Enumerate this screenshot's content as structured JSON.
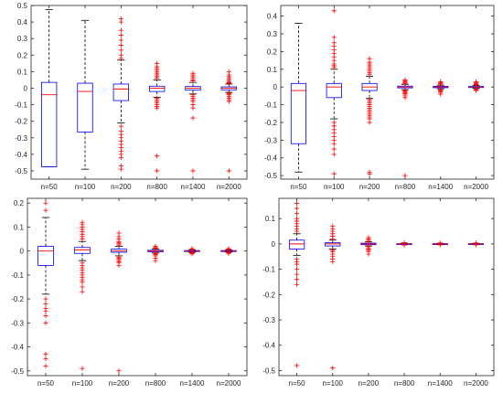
{
  "chart_data": [
    {
      "type": "box",
      "position": "top-left",
      "categories": [
        "n=50",
        "n=100",
        "n=200",
        "n=800",
        "n=1400",
        "n=2000"
      ],
      "ylim": [
        -0.55,
        0.5
      ],
      "yticks": [
        -0.5,
        -0.4,
        -0.3,
        -0.2,
        -0.1,
        0,
        0.1,
        0.2,
        0.3,
        0.4,
        0.5
      ],
      "boxes": [
        {
          "q1": -0.475,
          "median": -0.04,
          "q3": 0.035,
          "whisker_low": -0.475,
          "whisker_high": 0.475,
          "outliers": []
        },
        {
          "q1": -0.265,
          "median": -0.02,
          "q3": 0.03,
          "whisker_low": -0.49,
          "whisker_high": 0.41,
          "outliers": []
        },
        {
          "q1": -0.075,
          "median": -0.005,
          "q3": 0.025,
          "whisker_low": -0.21,
          "whisker_high": 0.17,
          "outliers": [
            0.42,
            0.4,
            0.35,
            0.32,
            0.29,
            0.26,
            0.23,
            0.2,
            0.18,
            -0.23,
            -0.26,
            -0.28,
            -0.3,
            -0.32,
            -0.34,
            -0.36,
            -0.38,
            -0.4,
            -0.42,
            -0.47,
            -0.49
          ]
        },
        {
          "q1": -0.02,
          "median": 0.0,
          "q3": 0.012,
          "whisker_low": -0.055,
          "whisker_high": 0.05,
          "outliers": [
            0.15,
            0.13,
            0.12,
            0.11,
            0.1,
            0.09,
            0.08,
            0.07,
            0.06,
            -0.06,
            -0.07,
            -0.08,
            -0.09,
            -0.1,
            -0.11,
            -0.12,
            -0.41,
            -0.5
          ]
        },
        {
          "q1": -0.012,
          "median": 0.0,
          "q3": 0.01,
          "whisker_low": -0.035,
          "whisker_high": 0.035,
          "outliers": [
            0.09,
            0.08,
            0.07,
            0.06,
            0.05,
            0.045,
            -0.04,
            -0.05,
            -0.06,
            -0.07,
            -0.08,
            -0.1,
            -0.12,
            -0.18,
            -0.5
          ]
        },
        {
          "q1": -0.01,
          "median": 0.0,
          "q3": 0.008,
          "whisker_low": -0.025,
          "whisker_high": 0.025,
          "outliers": [
            0.1,
            0.08,
            0.07,
            0.06,
            0.05,
            0.04,
            0.035,
            0.03,
            -0.03,
            -0.035,
            -0.04,
            -0.05,
            -0.06,
            -0.07,
            -0.08,
            -0.5
          ]
        }
      ]
    },
    {
      "type": "box",
      "position": "top-right",
      "categories": [
        "n=50",
        "n=100",
        "n=200",
        "n=800",
        "n=1400",
        "n=2000"
      ],
      "ylim": [
        -0.52,
        0.46
      ],
      "yticks": [
        -0.5,
        -0.4,
        -0.3,
        -0.2,
        -0.1,
        0,
        0.1,
        0.2,
        0.3,
        0.4
      ],
      "boxes": [
        {
          "q1": -0.32,
          "median": -0.02,
          "q3": 0.02,
          "whisker_low": -0.48,
          "whisker_high": 0.36,
          "outliers": []
        },
        {
          "q1": -0.06,
          "median": 0.0,
          "q3": 0.02,
          "whisker_low": -0.18,
          "whisker_high": 0.1,
          "outliers": [
            0.43,
            0.28,
            0.25,
            0.23,
            0.21,
            0.19,
            0.17,
            0.15,
            0.13,
            0.12,
            0.11,
            -0.2,
            -0.22,
            -0.24,
            -0.26,
            -0.28,
            -0.3,
            -0.32,
            -0.35,
            -0.38,
            -0.49
          ]
        },
        {
          "q1": -0.02,
          "median": 0.0,
          "q3": 0.02,
          "whisker_low": -0.065,
          "whisker_high": 0.06,
          "outliers": [
            0.16,
            0.14,
            0.13,
            0.12,
            0.11,
            0.1,
            0.09,
            0.08,
            0.07,
            -0.07,
            -0.08,
            -0.09,
            -0.1,
            -0.11,
            -0.12,
            -0.13,
            -0.14,
            -0.15,
            -0.16,
            -0.17,
            -0.18,
            -0.2,
            -0.48,
            -0.49
          ]
        },
        {
          "q1": -0.005,
          "median": 0.0,
          "q3": 0.005,
          "whisker_low": -0.015,
          "whisker_high": 0.015,
          "outliers": [
            0.04,
            0.035,
            0.03,
            0.025,
            0.02,
            -0.02,
            -0.025,
            -0.03,
            -0.035,
            -0.04,
            -0.05,
            -0.06,
            -0.5
          ]
        },
        {
          "q1": -0.004,
          "median": 0.0,
          "q3": 0.004,
          "whisker_low": -0.01,
          "whisker_high": 0.01,
          "outliers": [
            0.03,
            0.025,
            0.02,
            0.015,
            -0.015,
            -0.02,
            -0.025,
            -0.03,
            -0.04
          ]
        },
        {
          "q1": -0.003,
          "median": 0.0,
          "q3": 0.003,
          "whisker_low": -0.008,
          "whisker_high": 0.008,
          "outliers": [
            0.03,
            0.025,
            0.02,
            0.015,
            0.012,
            -0.012,
            -0.015,
            -0.02
          ]
        }
      ]
    },
    {
      "type": "box",
      "position": "bottom-left",
      "categories": [
        "n=50",
        "n=100",
        "n=200",
        "n=800",
        "n=1400",
        "n=2000"
      ],
      "ylim": [
        -0.52,
        0.22
      ],
      "yticks": [
        -0.5,
        -0.4,
        -0.3,
        -0.2,
        -0.1,
        0,
        0.1,
        0.2
      ],
      "boxes": [
        {
          "q1": -0.06,
          "median": 0.0,
          "q3": 0.02,
          "whisker_low": -0.18,
          "whisker_high": 0.14,
          "outliers": [
            0.2,
            0.17,
            -0.2,
            -0.22,
            -0.24,
            -0.25,
            -0.27,
            -0.3,
            -0.43,
            -0.45,
            -0.48
          ]
        },
        {
          "q1": -0.01,
          "median": 0.005,
          "q3": 0.015,
          "whisker_low": -0.04,
          "whisker_high": 0.04,
          "outliers": [
            0.12,
            0.11,
            0.1,
            0.09,
            0.08,
            0.07,
            0.06,
            0.05,
            -0.05,
            -0.06,
            -0.07,
            -0.08,
            -0.09,
            -0.1,
            -0.11,
            -0.12,
            -0.13,
            -0.15,
            -0.17,
            -0.49
          ]
        },
        {
          "q1": -0.005,
          "median": 0.0,
          "q3": 0.008,
          "whisker_low": -0.02,
          "whisker_high": 0.02,
          "outliers": [
            0.075,
            0.06,
            0.05,
            0.04,
            0.035,
            0.03,
            0.025,
            -0.025,
            -0.03,
            -0.035,
            -0.04,
            -0.045,
            -0.05,
            -0.06,
            -0.5
          ]
        },
        {
          "q1": -0.003,
          "median": 0.0,
          "q3": 0.003,
          "whisker_low": -0.008,
          "whisker_high": 0.008,
          "outliers": [
            0.02,
            0.015,
            0.012,
            0.01,
            -0.01,
            -0.012,
            -0.015,
            -0.02,
            -0.03,
            -0.04
          ]
        },
        {
          "q1": -0.002,
          "median": 0.0,
          "q3": 0.002,
          "whisker_low": -0.005,
          "whisker_high": 0.005,
          "outliers": [
            0.01,
            0.008,
            0.006,
            -0.006,
            -0.008,
            -0.01,
            -0.012
          ]
        },
        {
          "q1": -0.002,
          "median": 0.0,
          "q3": 0.002,
          "whisker_low": -0.004,
          "whisker_high": 0.004,
          "outliers": [
            0.01,
            0.008,
            0.006,
            -0.006,
            -0.008,
            -0.01
          ]
        }
      ]
    },
    {
      "type": "box",
      "position": "bottom-right",
      "categories": [
        "n=50",
        "n=100",
        "n=200",
        "n=800",
        "n=1400",
        "n=2000"
      ],
      "ylim": [
        -0.52,
        0.18
      ],
      "yticks": [
        -0.5,
        -0.4,
        -0.3,
        -0.2,
        -0.1,
        0,
        0.1
      ],
      "boxes": [
        {
          "q1": -0.02,
          "median": 0.0,
          "q3": 0.015,
          "whisker_low": -0.045,
          "whisker_high": 0.04,
          "outliers": [
            0.16,
            0.14,
            0.12,
            0.1,
            0.09,
            0.08,
            0.07,
            0.06,
            0.05,
            -0.06,
            -0.07,
            -0.08,
            -0.1,
            -0.12,
            -0.14,
            -0.16,
            -0.48
          ]
        },
        {
          "q1": -0.008,
          "median": 0.0,
          "q3": 0.005,
          "whisker_low": -0.02,
          "whisker_high": 0.015,
          "outliers": [
            0.07,
            0.06,
            0.05,
            0.04,
            0.03,
            0.02,
            -0.025,
            -0.03,
            -0.04,
            -0.05,
            -0.06,
            -0.07,
            -0.49
          ]
        },
        {
          "q1": -0.003,
          "median": 0.0,
          "q3": 0.003,
          "whisker_low": -0.008,
          "whisker_high": 0.008,
          "outliers": [
            0.025,
            0.02,
            0.015,
            0.01,
            -0.01,
            -0.015,
            -0.02,
            -0.025,
            -0.03,
            -0.04
          ]
        },
        {
          "q1": -0.001,
          "median": 0.0,
          "q3": 0.001,
          "whisker_low": -0.003,
          "whisker_high": 0.003,
          "outliers": [
            0.005,
            -0.005
          ]
        },
        {
          "q1": -0.001,
          "median": 0.0,
          "q3": 0.001,
          "whisker_low": -0.002,
          "whisker_high": 0.002,
          "outliers": [
            0.004,
            -0.004
          ]
        },
        {
          "q1": -0.001,
          "median": 0.0,
          "q3": 0.001,
          "whisker_low": -0.002,
          "whisker_high": 0.002,
          "outliers": [
            0.004,
            -0.004
          ]
        }
      ]
    }
  ],
  "colors": {
    "box": "#0000ff",
    "median": "#ff0000",
    "outlier": "#ff0000",
    "whisker": "#000000",
    "axis": "#262626",
    "background": "#ffffff"
  }
}
